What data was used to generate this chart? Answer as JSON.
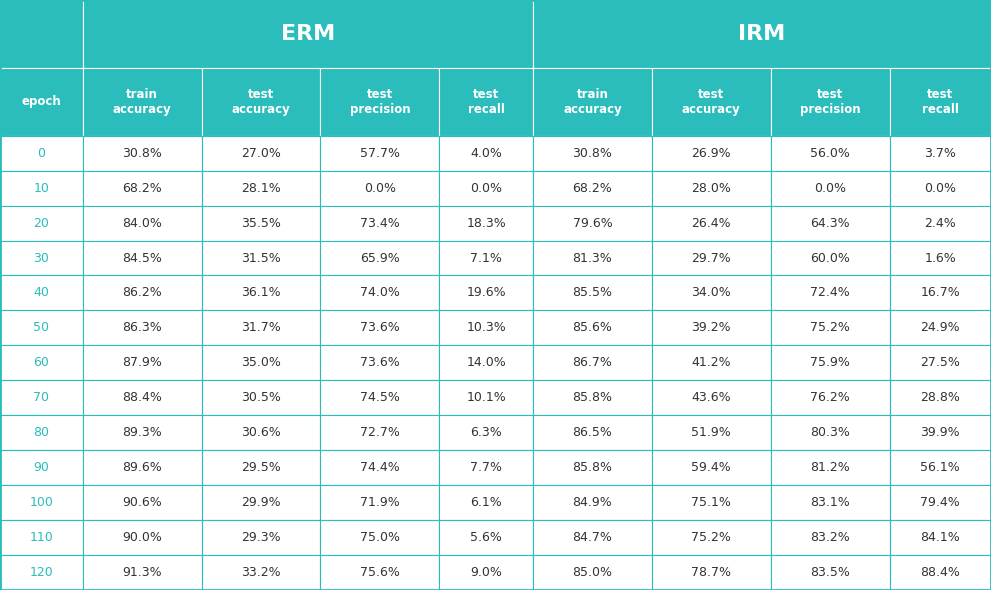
{
  "title_erm": "ERM",
  "title_irm": "IRM",
  "col_headers": [
    "epoch",
    "train\naccuracy",
    "test\naccuracy",
    "test\nprecision",
    "test\nrecall",
    "train\naccuracy",
    "test\naccuracy",
    "test\nprecision",
    "test\nrecall"
  ],
  "rows": [
    [
      "0",
      "30.8%",
      "27.0%",
      "57.7%",
      "4.0%",
      "30.8%",
      "26.9%",
      "56.0%",
      "3.7%"
    ],
    [
      "10",
      "68.2%",
      "28.1%",
      "0.0%",
      "0.0%",
      "68.2%",
      "28.0%",
      "0.0%",
      "0.0%"
    ],
    [
      "20",
      "84.0%",
      "35.5%",
      "73.4%",
      "18.3%",
      "79.6%",
      "26.4%",
      "64.3%",
      "2.4%"
    ],
    [
      "30",
      "84.5%",
      "31.5%",
      "65.9%",
      "7.1%",
      "81.3%",
      "29.7%",
      "60.0%",
      "1.6%"
    ],
    [
      "40",
      "86.2%",
      "36.1%",
      "74.0%",
      "19.6%",
      "85.5%",
      "34.0%",
      "72.4%",
      "16.7%"
    ],
    [
      "50",
      "86.3%",
      "31.7%",
      "73.6%",
      "10.3%",
      "85.6%",
      "39.2%",
      "75.2%",
      "24.9%"
    ],
    [
      "60",
      "87.9%",
      "35.0%",
      "73.6%",
      "14.0%",
      "86.7%",
      "41.2%",
      "75.9%",
      "27.5%"
    ],
    [
      "70",
      "88.4%",
      "30.5%",
      "74.5%",
      "10.1%",
      "85.8%",
      "43.6%",
      "76.2%",
      "28.8%"
    ],
    [
      "80",
      "89.3%",
      "30.6%",
      "72.7%",
      "6.3%",
      "86.5%",
      "51.9%",
      "80.3%",
      "39.9%"
    ],
    [
      "90",
      "89.6%",
      "29.5%",
      "74.4%",
      "7.7%",
      "85.8%",
      "59.4%",
      "81.2%",
      "56.1%"
    ],
    [
      "100",
      "90.6%",
      "29.9%",
      "71.9%",
      "6.1%",
      "84.9%",
      "75.1%",
      "83.1%",
      "79.4%"
    ],
    [
      "110",
      "90.0%",
      "29.3%",
      "75.0%",
      "5.6%",
      "84.7%",
      "75.2%",
      "83.2%",
      "84.1%"
    ],
    [
      "120",
      "91.3%",
      "33.2%",
      "75.6%",
      "9.0%",
      "85.0%",
      "78.7%",
      "83.5%",
      "88.4%"
    ]
  ],
  "teal_color": "#2BBCBC",
  "header_text_color": "#FFFFFF",
  "cell_text_color": "#333333",
  "border_color": "#2BBCBC",
  "bg_color": "#FFFFFF",
  "row_colors": [
    "#FFFFFF",
    "#FFFFFF"
  ]
}
